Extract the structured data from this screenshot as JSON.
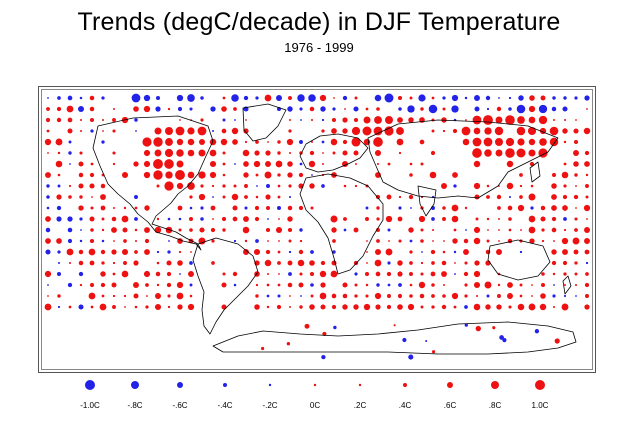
{
  "title": "Trends (degC/decade) in DJF Temperature",
  "subtitle": "1976 - 1999",
  "colors": {
    "negative": "#2222e8",
    "positive": "#ee1111",
    "coast": "#000000",
    "frame": "#555555"
  },
  "legend": [
    {
      "label": "-1.0C",
      "value": -1.0
    },
    {
      "label": "-.8C",
      "value": -0.8
    },
    {
      "label": "-.6C",
      "value": -0.6
    },
    {
      "label": "-.4C",
      "value": -0.4
    },
    {
      "label": "-.2C",
      "value": -0.2
    },
    {
      "label": "0C",
      "value": 0.0
    },
    {
      "label": ".2C",
      "value": 0.2
    },
    {
      "label": ".4C",
      "value": 0.4
    },
    {
      "label": ".6C",
      "value": 0.6
    },
    {
      "label": ".8C",
      "value": 0.8
    },
    {
      "label": "1.0C",
      "value": 1.0
    }
  ]
}
